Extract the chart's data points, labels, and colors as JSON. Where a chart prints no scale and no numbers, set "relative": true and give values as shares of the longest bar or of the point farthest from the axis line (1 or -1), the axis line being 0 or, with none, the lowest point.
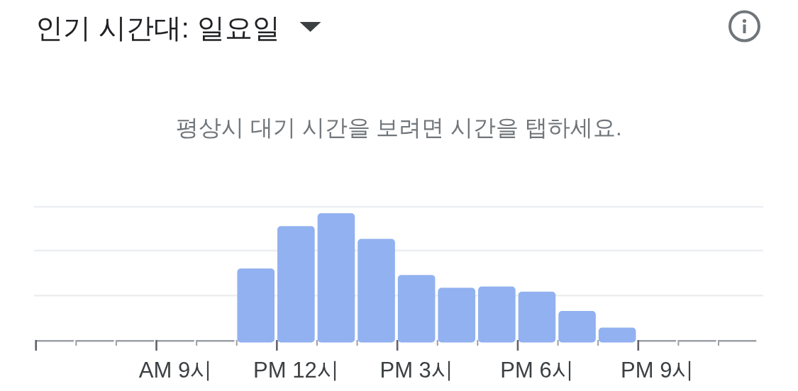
{
  "chart_data": {
    "type": "bar",
    "title": "인기 시간대: 일요일",
    "subtitle": "평상시 대기 시간을 보려면 시간을 탭하세요.",
    "categories": [
      null,
      null,
      null,
      "AM 9시",
      null,
      null,
      "PM 12시",
      null,
      null,
      "PM 3시",
      null,
      null,
      "PM 6시",
      null,
      null,
      "PM 9시",
      null,
      null
    ],
    "values": [
      0,
      0,
      0,
      0,
      0,
      0.57,
      0.9,
      1,
      0.8,
      0.52,
      0.42,
      0.43,
      0.39,
      0.24,
      0.11,
      0,
      0,
      0
    ],
    "color": "#92b1f0",
    "relative": true,
    "tick_labels": "x",
    "ref_lines": [
      {
        "axis": "y",
        "value": 0.36,
        "color": "#eceef1"
      },
      {
        "axis": "y",
        "value": 0.71,
        "color": "#eceef1"
      },
      {
        "axis": "y",
        "value": 1.05,
        "color": "#eceef1"
      }
    ]
  }
}
